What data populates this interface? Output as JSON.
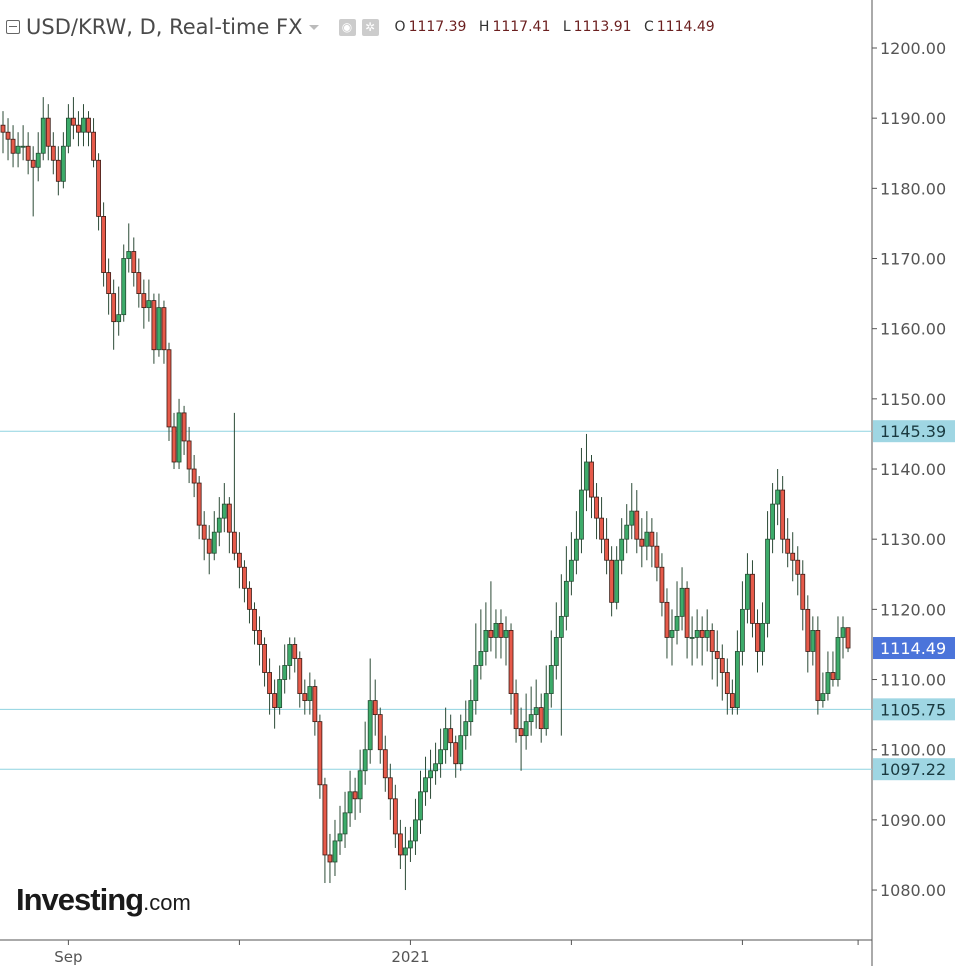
{
  "header": {
    "symbol": "USD/KRW, D, Real-time FX",
    "icons": [
      "collapse-icon",
      "caret-down-icon",
      "eye-icon",
      "gear-icon"
    ],
    "ohlc": {
      "o_label": "O",
      "o": "1117.39",
      "h_label": "H",
      "h": "1117.41",
      "l_label": "L",
      "l": "1113.91",
      "c_label": "C",
      "c": "1114.49"
    }
  },
  "logo": {
    "brand": "Investing",
    "suffix": ".com"
  },
  "colors": {
    "up": "#3dab6a",
    "down": "#e65a4a",
    "outline": "#3a1a14",
    "hline": "#8fd3e0",
    "hline_label_bg": "#9fd6e3",
    "last_price_bg": "#4b74da",
    "axis": "#555555"
  },
  "chart_data": {
    "type": "candlestick",
    "title": "USD/KRW, D, Real-time FX",
    "ylim": [
      1073,
      1207
    ],
    "y_ticks": [
      "1200.00",
      "1190.00",
      "1180.00",
      "1170.00",
      "1160.00",
      "1150.00",
      "1140.00",
      "1130.00",
      "1120.00",
      "1110.00",
      "1100.00",
      "1090.00",
      "1080.00"
    ],
    "x_tick_labels": [
      {
        "label": "Sep",
        "candle": 13
      },
      {
        "label": "",
        "candle": 47
      },
      {
        "label": "2021",
        "candle": 81
      },
      {
        "label": "",
        "candle": 113
      },
      {
        "label": "",
        "candle": 147
      },
      {
        "label": "",
        "candle": 170
      }
    ],
    "horizontal_lines": [
      {
        "value": "1145.39"
      },
      {
        "value": "1105.75"
      },
      {
        "value": "1097.22"
      }
    ],
    "last_price": "1114.49",
    "grid": false,
    "ohlc": [
      [
        1189,
        1191,
        1185,
        1188
      ],
      [
        1188,
        1190,
        1184,
        1187
      ],
      [
        1187,
        1189,
        1183,
        1185
      ],
      [
        1185,
        1188,
        1183,
        1186
      ],
      [
        1186,
        1189,
        1184,
        1186
      ],
      [
        1186,
        1188,
        1182,
        1184
      ],
      [
        1184,
        1186,
        1176,
        1183
      ],
      [
        1183,
        1188,
        1181,
        1185
      ],
      [
        1185,
        1193,
        1184,
        1190
      ],
      [
        1190,
        1192,
        1184,
        1186
      ],
      [
        1186,
        1188,
        1182,
        1184
      ],
      [
        1184,
        1186,
        1179,
        1181
      ],
      [
        1181,
        1188,
        1180,
        1186
      ],
      [
        1186,
        1192,
        1185,
        1190
      ],
      [
        1190,
        1193,
        1187,
        1189
      ],
      [
        1189,
        1191,
        1186,
        1188
      ],
      [
        1188,
        1192,
        1186,
        1190
      ],
      [
        1190,
        1191,
        1186,
        1188
      ],
      [
        1188,
        1190,
        1183,
        1184
      ],
      [
        1184,
        1185,
        1174,
        1176
      ],
      [
        1176,
        1178,
        1166,
        1168
      ],
      [
        1168,
        1170,
        1162,
        1165
      ],
      [
        1165,
        1167,
        1157,
        1161
      ],
      [
        1161,
        1166,
        1159,
        1162
      ],
      [
        1162,
        1172,
        1161,
        1170
      ],
      [
        1170,
        1175,
        1168,
        1171
      ],
      [
        1171,
        1173,
        1166,
        1168
      ],
      [
        1168,
        1170,
        1163,
        1165
      ],
      [
        1165,
        1167,
        1160,
        1163
      ],
      [
        1163,
        1167,
        1161,
        1164
      ],
      [
        1164,
        1165,
        1155,
        1157
      ],
      [
        1157,
        1165,
        1156,
        1163
      ],
      [
        1163,
        1164,
        1155,
        1157
      ],
      [
        1157,
        1158,
        1144,
        1146
      ],
      [
        1146,
        1148,
        1140,
        1141
      ],
      [
        1141,
        1150,
        1140,
        1148
      ],
      [
        1148,
        1149,
        1142,
        1144
      ],
      [
        1144,
        1146,
        1138,
        1140
      ],
      [
        1140,
        1142,
        1136,
        1138
      ],
      [
        1138,
        1139,
        1130,
        1132
      ],
      [
        1132,
        1134,
        1127,
        1130
      ],
      [
        1130,
        1132,
        1125,
        1128
      ],
      [
        1128,
        1134,
        1127,
        1131
      ],
      [
        1131,
        1136,
        1129,
        1133
      ],
      [
        1133,
        1138,
        1131,
        1135
      ],
      [
        1135,
        1136,
        1128,
        1131
      ],
      [
        1131,
        1148,
        1127,
        1128
      ],
      [
        1128,
        1131,
        1123,
        1126
      ],
      [
        1126,
        1127,
        1121,
        1123
      ],
      [
        1123,
        1124,
        1118,
        1120
      ],
      [
        1120,
        1121,
        1115,
        1117
      ],
      [
        1117,
        1119,
        1112,
        1115
      ],
      [
        1115,
        1116,
        1109,
        1111
      ],
      [
        1111,
        1113,
        1105,
        1108
      ],
      [
        1108,
        1110,
        1103,
        1106
      ],
      [
        1106,
        1112,
        1105,
        1110
      ],
      [
        1110,
        1115,
        1108,
        1112
      ],
      [
        1112,
        1116,
        1110,
        1115
      ],
      [
        1115,
        1116,
        1111,
        1113
      ],
      [
        1113,
        1114,
        1106,
        1108
      ],
      [
        1108,
        1110,
        1105,
        1107
      ],
      [
        1107,
        1111,
        1105,
        1109
      ],
      [
        1109,
        1110,
        1102,
        1104
      ],
      [
        1104,
        1105,
        1093,
        1095
      ],
      [
        1095,
        1096,
        1081,
        1085
      ],
      [
        1085,
        1088,
        1081,
        1084
      ],
      [
        1084,
        1090,
        1082,
        1087
      ],
      [
        1087,
        1092,
        1085,
        1088
      ],
      [
        1088,
        1094,
        1086,
        1091
      ],
      [
        1091,
        1097,
        1089,
        1094
      ],
      [
        1094,
        1096,
        1090,
        1093
      ],
      [
        1093,
        1100,
        1091,
        1097
      ],
      [
        1097,
        1104,
        1095,
        1100
      ],
      [
        1100,
        1113,
        1098,
        1107
      ],
      [
        1107,
        1110,
        1102,
        1105
      ],
      [
        1105,
        1106,
        1098,
        1100
      ],
      [
        1100,
        1102,
        1094,
        1096
      ],
      [
        1096,
        1098,
        1090,
        1093
      ],
      [
        1093,
        1095,
        1086,
        1088
      ],
      [
        1088,
        1090,
        1083,
        1085
      ],
      [
        1085,
        1089,
        1080,
        1086
      ],
      [
        1086,
        1089,
        1084,
        1087
      ],
      [
        1087,
        1093,
        1085,
        1090
      ],
      [
        1090,
        1097,
        1088,
        1094
      ],
      [
        1094,
        1099,
        1092,
        1096
      ],
      [
        1096,
        1100,
        1093,
        1097
      ],
      [
        1097,
        1101,
        1095,
        1098
      ],
      [
        1098,
        1103,
        1096,
        1100
      ],
      [
        1100,
        1106,
        1098,
        1103
      ],
      [
        1103,
        1105,
        1099,
        1101
      ],
      [
        1101,
        1102,
        1096,
        1098
      ],
      [
        1098,
        1105,
        1097,
        1102
      ],
      [
        1102,
        1107,
        1100,
        1104
      ],
      [
        1104,
        1110,
        1102,
        1107
      ],
      [
        1107,
        1118,
        1105,
        1112
      ],
      [
        1112,
        1120,
        1110,
        1114
      ],
      [
        1114,
        1121,
        1112,
        1117
      ],
      [
        1117,
        1124,
        1114,
        1116
      ],
      [
        1116,
        1120,
        1113,
        1118
      ],
      [
        1118,
        1120,
        1113,
        1116
      ],
      [
        1116,
        1119,
        1112,
        1117
      ],
      [
        1117,
        1118,
        1105,
        1108
      ],
      [
        1108,
        1110,
        1101,
        1103
      ],
      [
        1103,
        1106,
        1097,
        1102
      ],
      [
        1102,
        1108,
        1100,
        1104
      ],
      [
        1104,
        1109,
        1102,
        1105
      ],
      [
        1105,
        1110,
        1103,
        1106
      ],
      [
        1106,
        1108,
        1101,
        1103
      ],
      [
        1103,
        1112,
        1102,
        1108
      ],
      [
        1108,
        1117,
        1106,
        1112
      ],
      [
        1112,
        1121,
        1110,
        1116
      ],
      [
        1116,
        1125,
        1102,
        1119
      ],
      [
        1119,
        1129,
        1117,
        1124
      ],
      [
        1124,
        1131,
        1122,
        1127
      ],
      [
        1127,
        1134,
        1125,
        1130
      ],
      [
        1130,
        1143,
        1128,
        1137
      ],
      [
        1137,
        1145,
        1134,
        1141
      ],
      [
        1141,
        1142,
        1133,
        1136
      ],
      [
        1136,
        1138,
        1130,
        1133
      ],
      [
        1133,
        1136,
        1128,
        1130
      ],
      [
        1130,
        1133,
        1125,
        1127
      ],
      [
        1127,
        1129,
        1119,
        1121
      ],
      [
        1121,
        1129,
        1120,
        1127
      ],
      [
        1127,
        1133,
        1125,
        1130
      ],
      [
        1130,
        1135,
        1128,
        1132
      ],
      [
        1132,
        1138,
        1130,
        1134
      ],
      [
        1134,
        1137,
        1128,
        1130
      ],
      [
        1130,
        1133,
        1126,
        1129
      ],
      [
        1129,
        1134,
        1127,
        1131
      ],
      [
        1131,
        1133,
        1126,
        1129
      ],
      [
        1129,
        1131,
        1124,
        1126
      ],
      [
        1126,
        1128,
        1119,
        1121
      ],
      [
        1121,
        1123,
        1113,
        1116
      ],
      [
        1116,
        1120,
        1112,
        1117
      ],
      [
        1117,
        1124,
        1115,
        1119
      ],
      [
        1119,
        1126,
        1117,
        1123
      ],
      [
        1123,
        1124,
        1113,
        1116
      ],
      [
        1116,
        1119,
        1112,
        1116
      ],
      [
        1116,
        1120,
        1113,
        1117
      ],
      [
        1117,
        1119,
        1112,
        1116
      ],
      [
        1116,
        1120,
        1114,
        1117
      ],
      [
        1117,
        1118,
        1110,
        1114
      ],
      [
        1114,
        1117,
        1109,
        1113
      ],
      [
        1113,
        1115,
        1107,
        1111
      ],
      [
        1111,
        1113,
        1105,
        1108
      ],
      [
        1108,
        1110,
        1105,
        1106
      ],
      [
        1106,
        1117,
        1105,
        1114
      ],
      [
        1114,
        1124,
        1112,
        1120
      ],
      [
        1120,
        1128,
        1118,
        1125
      ],
      [
        1125,
        1127,
        1116,
        1118
      ],
      [
        1118,
        1120,
        1111,
        1114
      ],
      [
        1114,
        1121,
        1112,
        1118
      ],
      [
        1118,
        1134,
        1116,
        1130
      ],
      [
        1130,
        1138,
        1128,
        1135
      ],
      [
        1135,
        1140,
        1132,
        1137
      ],
      [
        1137,
        1139,
        1128,
        1130
      ],
      [
        1130,
        1133,
        1126,
        1128
      ],
      [
        1128,
        1131,
        1124,
        1127
      ],
      [
        1127,
        1129,
        1122,
        1125
      ],
      [
        1125,
        1127,
        1117,
        1120
      ],
      [
        1120,
        1122,
        1111,
        1114
      ],
      [
        1114,
        1119,
        1112,
        1117
      ],
      [
        1117,
        1119,
        1105,
        1107
      ],
      [
        1107,
        1111,
        1106,
        1108
      ],
      [
        1108,
        1114,
        1107,
        1111
      ],
      [
        1111,
        1114,
        1109,
        1110
      ],
      [
        1110,
        1119,
        1109,
        1116
      ],
      [
        1116,
        1119,
        1113,
        1117.39
      ],
      [
        1117.39,
        1117.41,
        1113.91,
        1114.49
      ]
    ]
  }
}
